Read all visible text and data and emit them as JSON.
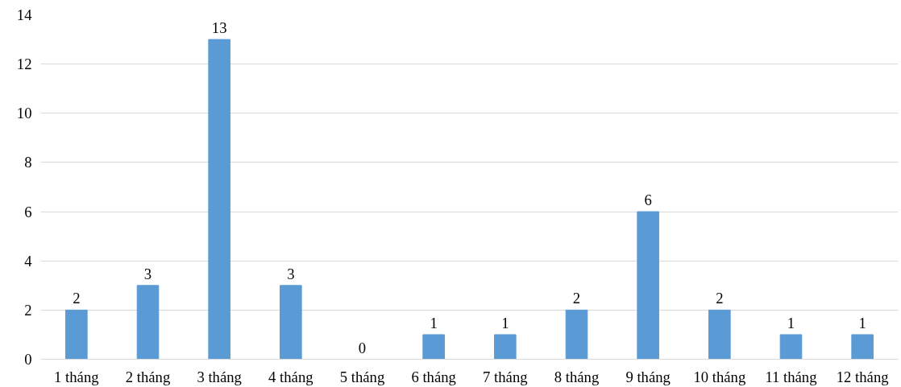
{
  "chart_data": {
    "type": "bar",
    "categories": [
      "1 tháng",
      "2 tháng",
      "3 tháng",
      "4 tháng",
      "5 tháng",
      "6 tháng",
      "7 tháng",
      "8 tháng",
      "9 tháng",
      "10 tháng",
      "11 tháng",
      "12 tháng"
    ],
    "values": [
      2,
      3,
      13,
      3,
      0,
      1,
      1,
      2,
      6,
      2,
      1,
      1
    ],
    "color": "#5b9bd5",
    "ylim": [
      0,
      14
    ],
    "yticks": [
      0,
      2,
      4,
      6,
      8,
      10,
      12,
      14
    ],
    "grid": "y",
    "data_labels": true
  }
}
